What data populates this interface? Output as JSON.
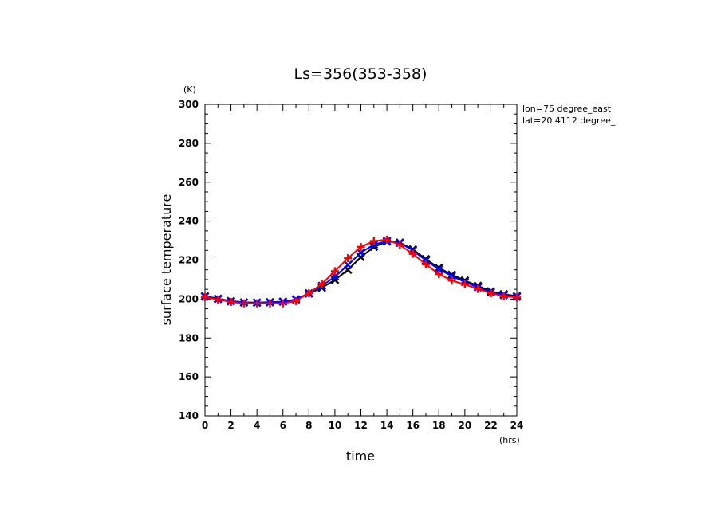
{
  "chart_data": {
    "type": "line",
    "title": "Ls=356(353-358)",
    "xlabel": "time",
    "ylabel": "surface temperature",
    "x_unit": "(hrs)",
    "y_unit": "(K)",
    "xlim": [
      0,
      24
    ],
    "ylim": [
      140,
      300
    ],
    "x_ticks": [
      0,
      2,
      4,
      6,
      8,
      10,
      12,
      14,
      16,
      18,
      20,
      22,
      24
    ],
    "y_ticks": [
      140,
      160,
      180,
      200,
      220,
      240,
      260,
      280,
      300
    ],
    "grid": false,
    "annotations": [
      "lon=75 degree_east",
      "lat=20.4112 degree_"
    ],
    "x": [
      0,
      1,
      2,
      3,
      4,
      5,
      6,
      7,
      8,
      9,
      10,
      11,
      12,
      13,
      14,
      15,
      16,
      17,
      18,
      19,
      20,
      21,
      22,
      23,
      24
    ],
    "series": [
      {
        "color": "#000000",
        "marker": "x",
        "values": [
          201.5,
          200.2,
          199.0,
          198.3,
          198.2,
          198.4,
          198.7,
          199.8,
          202.8,
          205.8,
          209.8,
          215.0,
          221.5,
          226.8,
          229.5,
          229.0,
          225.5,
          220.5,
          216.0,
          212.5,
          209.5,
          206.8,
          204.0,
          202.5,
          201.5
        ]
      },
      {
        "color": "#0000ff",
        "marker": "x",
        "values": [
          201.3,
          200.0,
          198.8,
          198.2,
          198.1,
          198.3,
          198.6,
          199.8,
          203.0,
          206.8,
          211.5,
          217.5,
          223.8,
          228.0,
          229.8,
          228.8,
          225.0,
          219.8,
          215.2,
          211.8,
          208.8,
          206.0,
          203.5,
          202.0,
          201.2
        ]
      },
      {
        "color": "#ff0000",
        "marker": "+",
        "values": [
          201.0,
          199.8,
          198.5,
          197.8,
          197.8,
          197.8,
          197.8,
          199.0,
          203.0,
          207.8,
          214.3,
          221.0,
          226.8,
          229.8,
          230.5,
          227.8,
          223.2,
          217.8,
          212.8,
          209.5,
          207.5,
          205.2,
          203.0,
          201.5,
          200.8
        ]
      }
    ]
  }
}
